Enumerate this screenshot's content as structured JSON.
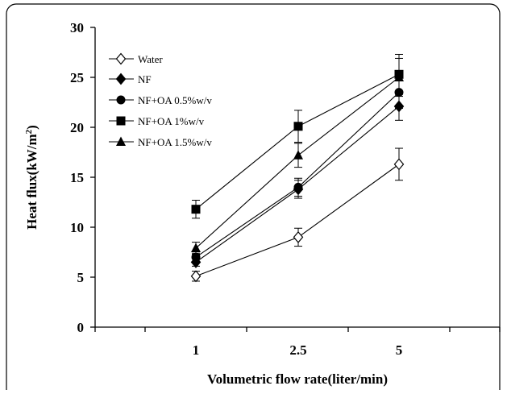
{
  "chart_data": {
    "type": "line",
    "xlabel": "Volumetric flow rate(liter/min)",
    "ylabel": "Heat flux(kW/m",
    "ylabel_sup": "2",
    "ylabel_tail": ")",
    "ylim": [
      0,
      30
    ],
    "yticks": [
      "0",
      "5",
      "10",
      "15",
      "20",
      "25",
      "30"
    ],
    "categories": [
      "1",
      "2.5",
      "5"
    ],
    "grid": false,
    "legend_position": "top-left",
    "series": [
      {
        "name": "Water",
        "marker": "diamond-open",
        "values": [
          5.1,
          9.0,
          16.3
        ],
        "errors": [
          0.5,
          0.9,
          1.6
        ]
      },
      {
        "name": "NF",
        "marker": "diamond",
        "values": [
          6.5,
          13.8,
          22.1
        ],
        "errors": [
          0.4,
          0.9,
          1.4
        ]
      },
      {
        "name": "NF+OA 0.5%w/v",
        "marker": "circle",
        "values": [
          7.0,
          14.0,
          23.5
        ],
        "errors": [
          0.4,
          0.9,
          1.6
        ]
      },
      {
        "name": "NF+OA 1%w/v",
        "marker": "square",
        "values": [
          11.8,
          20.1,
          25.3
        ],
        "errors": [
          0.9,
          1.6,
          2.0
        ]
      },
      {
        "name": "NF+OA 1.5%w/v",
        "marker": "triangle",
        "values": [
          7.9,
          17.2,
          25.0
        ],
        "errors": [
          0.6,
          1.2,
          1.9
        ]
      }
    ]
  }
}
